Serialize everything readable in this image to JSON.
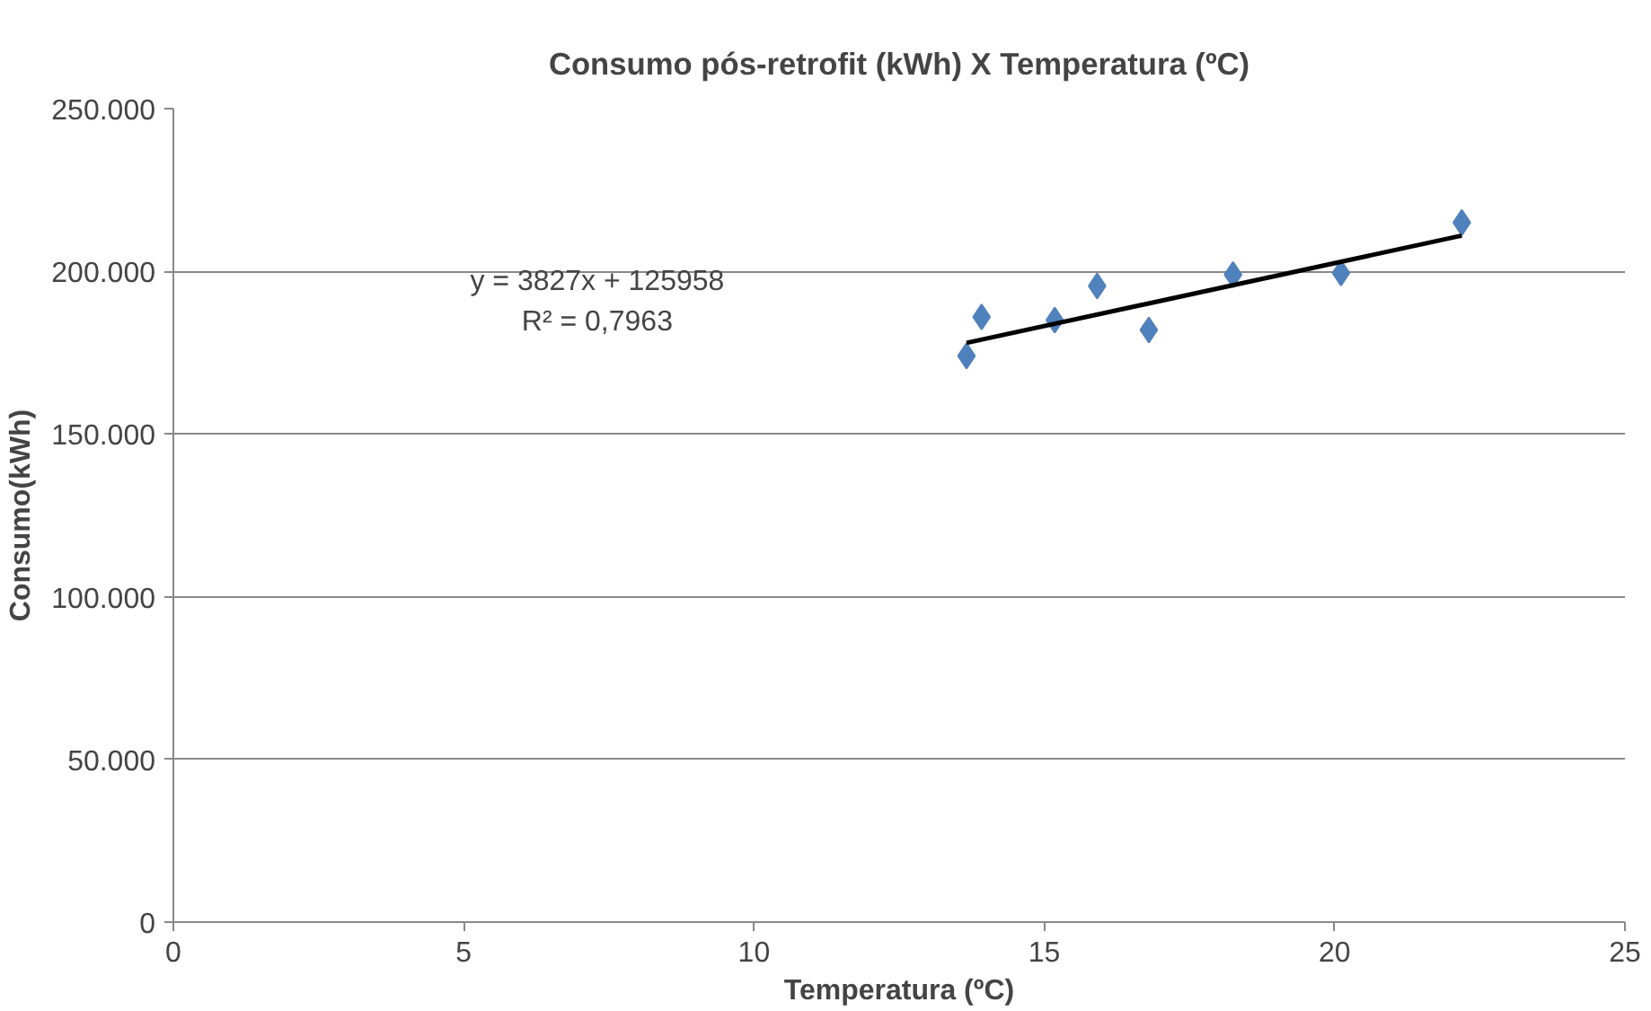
{
  "chart_data": {
    "type": "scatter",
    "title": "Consumo pós-retrofit (kWh) X Temperatura (ºC)",
    "xlabel": "Temperatura (ºC)",
    "ylabel": "Consumo(kWh)",
    "series": [
      {
        "color": "#4f81bd",
        "marker": "diamond",
        "x": [
          13.66,
          13.92,
          15.18,
          15.91,
          16.8,
          18.25,
          20.11,
          22.19
        ],
        "values": [
          174000,
          186000,
          185000,
          195500,
          182000,
          199000,
          199500,
          215000
        ]
      },
      {
        "type": "line",
        "color": "#000000",
        "x": [
          13.66,
          22.19
        ],
        "values": [
          178000,
          211000
        ]
      }
    ],
    "annotations": [
      "y = 3827x + 125958",
      "R² = 0,7963"
    ],
    "xlim": [
      0,
      25
    ],
    "xticks": [
      0,
      5,
      10,
      15,
      20,
      25
    ],
    "ylim": [
      0,
      250000
    ],
    "yticks": [
      {
        "value": 0,
        "label": "0"
      },
      {
        "value": 50000,
        "label": "50.000"
      },
      {
        "value": 100000,
        "label": "100.000"
      },
      {
        "value": 150000,
        "label": "150.000"
      },
      {
        "value": 200000,
        "label": "200.000"
      },
      {
        "value": 250000,
        "label": "250.000"
      }
    ],
    "grid": "y"
  }
}
